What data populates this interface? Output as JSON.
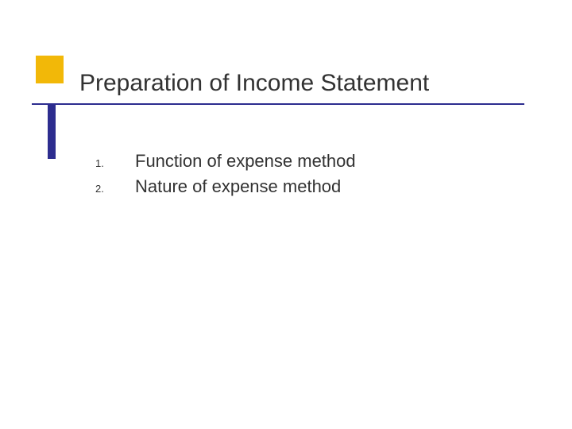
{
  "slide": {
    "title": "Preparation of Income Statement",
    "list": [
      {
        "number": "1.",
        "text": "Function of expense method"
      },
      {
        "number": "2.",
        "text": "Nature of expense method"
      }
    ],
    "styling": {
      "background_color": "#ffffff",
      "title_color": "#323232",
      "body_text_color": "#323232",
      "accent_square_color": "#f2b808",
      "accent_bar_color": "#2d2d8f",
      "title_rule_color": "#2d2d8f",
      "title_fontsize": 30,
      "list_text_fontsize": 22,
      "list_number_fontsize": 13,
      "font_family_title": "Verdana",
      "font_family_body": "Verdana"
    }
  }
}
